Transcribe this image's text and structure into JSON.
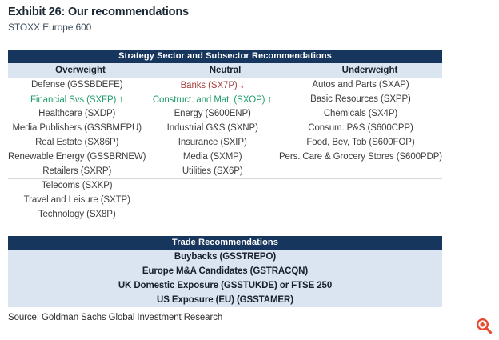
{
  "exhibit": {
    "title": "Exhibit 26: Our recommendations",
    "subtitle": "STOXX Europe 600"
  },
  "sector_table": {
    "title": "Strategy Sector and Subsector Recommendations",
    "columns": [
      {
        "header": "Overweight",
        "items": [
          {
            "label": "Defense (GSSBDEFE)"
          },
          {
            "label": "Financial Svs (SXFP)",
            "color": "green",
            "arrow": "up"
          },
          {
            "label": "Healthcare (SXDP)"
          },
          {
            "label": "Media Publishers (GSSBMEPU)"
          },
          {
            "label": "Real Estate (SX86P)"
          },
          {
            "label": "Renewable Energy (GSSBRNEW)"
          },
          {
            "label": "Retailers (SXRP)"
          },
          {
            "label": "Telecoms (SXKP)"
          },
          {
            "label": "Travel and Leisure (SXTP)"
          },
          {
            "label": "Technology (SX8P)"
          }
        ]
      },
      {
        "header": "Neutral",
        "items": [
          {
            "label": "Banks (SX7P)",
            "color": "red",
            "arrow": "down"
          },
          {
            "label": "Construct. and Mat. (SXOP)",
            "color": "green",
            "arrow": "up"
          },
          {
            "label": "Energy (S600ENP)"
          },
          {
            "label": "Industrial G&S (SXNP)"
          },
          {
            "label": "Insurance (SXIP)"
          },
          {
            "label": "Media (SXMP)"
          },
          {
            "label": "Utilities (SX6P)"
          }
        ]
      },
      {
        "header": "Underweight",
        "items": [
          {
            "label": "Autos and Parts (SXAP)"
          },
          {
            "label": "Basic Resources (SXPP)"
          },
          {
            "label": "Chemicals (SX4P)"
          },
          {
            "label": "Consum. P&S (S600CPP)"
          },
          {
            "label": "Food, Bev, Tob (S600FOP)"
          },
          {
            "label": "Pers. Care & Grocery Stores (S600PDP)"
          }
        ]
      }
    ],
    "divider_after_row": 7
  },
  "trade_table": {
    "title": "Trade Recommendations",
    "rows": [
      "Buybacks (GSSTREPO)",
      "Europe M&A Candidates (GSTRACQN)",
      "UK Domestic Exposure (GSSTUKDE) or FTSE 250",
      "US Exposure (EU) (GSSTAMER)"
    ]
  },
  "source": "Source: Goldman Sachs Global Investment Research",
  "icons": {
    "zoom_in": "zoom-in magnifier with plus"
  },
  "colors": {
    "header_navy": "#17365d",
    "panel_light_blue": "#dbe5f1",
    "upgrade_green": "#1f9d6a",
    "downgrade_red": "#a4403d",
    "up_arrow": "#109955",
    "down_arrow": "#c41212",
    "zoom_icon_orange": "#e8472e"
  }
}
